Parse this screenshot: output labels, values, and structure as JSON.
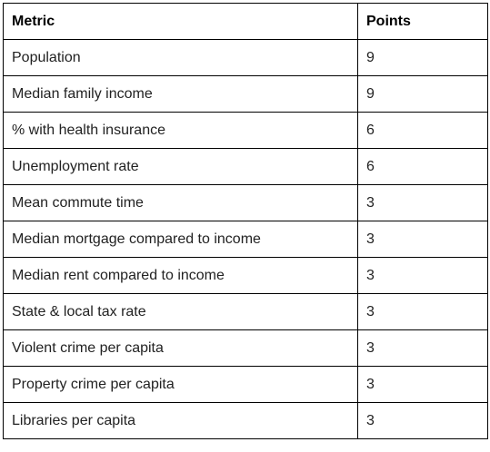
{
  "table": {
    "headers": [
      "Metric",
      "Points"
    ],
    "rows": [
      [
        "Population",
        "9"
      ],
      [
        "Median family income",
        "9"
      ],
      [
        "% with health insurance",
        "6"
      ],
      [
        "Unemployment rate",
        "6"
      ],
      [
        "Mean commute time",
        "3"
      ],
      [
        "Median mortgage compared to income",
        "3"
      ],
      [
        "Median rent compared to income",
        "3"
      ],
      [
        "State & local tax rate",
        "3"
      ],
      [
        "Violent crime per capita",
        "3"
      ],
      [
        "Property crime per capita",
        "3"
      ],
      [
        "Libraries per capita",
        "3"
      ]
    ]
  }
}
